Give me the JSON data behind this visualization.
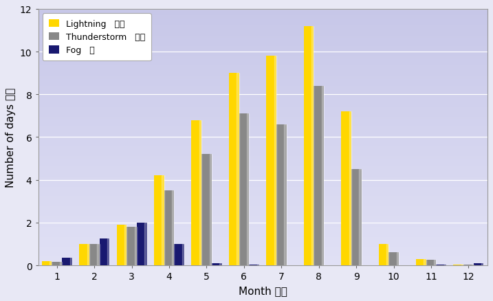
{
  "months": [
    1,
    2,
    3,
    4,
    5,
    6,
    7,
    8,
    9,
    10,
    11,
    12
  ],
  "month_labels": [
    "1",
    "2",
    "3",
    "4",
    "5",
    "6",
    "7",
    "8",
    "9",
    "10",
    "11",
    "12"
  ],
  "lightning": [
    0.2,
    1.0,
    1.9,
    4.2,
    6.8,
    9.0,
    9.8,
    11.2,
    7.2,
    1.0,
    0.3,
    0.05
  ],
  "thunderstorm": [
    0.15,
    1.0,
    1.8,
    3.5,
    5.2,
    7.1,
    6.6,
    8.4,
    4.5,
    0.6,
    0.25,
    0.05
  ],
  "fog": [
    0.35,
    1.25,
    2.0,
    1.0,
    0.1,
    0.05,
    0.0,
    0.0,
    0.0,
    0.0,
    0.05,
    0.1
  ],
  "lightning_color": "#FFD700",
  "thunderstorm_color": "#888888",
  "fog_color": "#191970",
  "legend_labels": [
    "Lightning   閣電",
    "Thunderstorm   雷暴",
    "Fog   霧"
  ],
  "xlabel": "Month 月份",
  "ylabel": "Number of days 日數",
  "ylim": [
    0,
    12
  ],
  "yticks": [
    0,
    2,
    4,
    6,
    8,
    10,
    12
  ],
  "bar_width": 0.27,
  "outer_bg": "#e8e8f5",
  "plot_bg_top": "#c8c8e8",
  "plot_bg_bottom": "#e4e4f4",
  "axis_fontsize": 11,
  "tick_fontsize": 10,
  "legend_fontsize": 9
}
